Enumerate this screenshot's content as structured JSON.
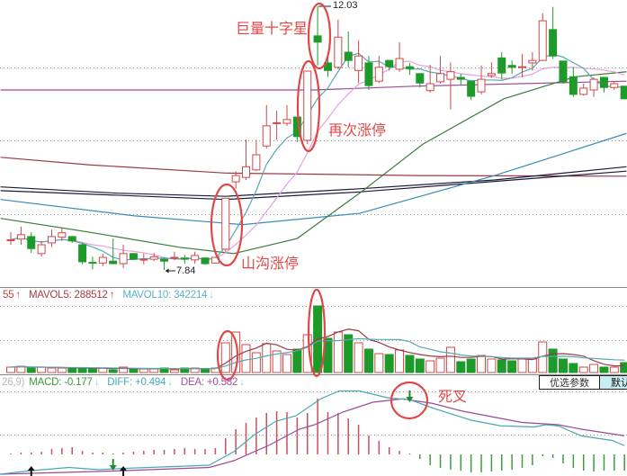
{
  "volume_header": {
    "vol_value": "55",
    "mavol5_label": "MAVOL5: 288512",
    "mavol10_label": "MAVOL10: 342214"
  },
  "macd_header": {
    "params": "26,9)",
    "macd_label": "MACD: -0.177",
    "diff_label": "DIFF: +0.494",
    "dea_label": "DEA: +0.582"
  },
  "buttons": {
    "optimize_params": "优选参数",
    "default": "默认"
  },
  "annotations": {
    "high_price": "12.03",
    "low_price": "7.84",
    "doji_label": "巨量十字星",
    "limit_up_again_label": "再次涨停",
    "valley_limit_up_label": "山沟涨停",
    "death_cross_label": "死叉"
  },
  "colors": {
    "up": "#d04848",
    "down": "#1e9a2a",
    "ma5": "#58a8b0",
    "ma10": "#e8a0e0",
    "green_ma": "#3c7a3c",
    "maroon_ma": "#9a3a48",
    "purple_ma": "#9a4a98",
    "navy_ma": "#1c1c3c",
    "teal_ma": "#3a8ab8",
    "annotation": "#e04848",
    "diff": "#4aa8b0",
    "dea": "#9a4a98"
  },
  "chart_data": [
    {
      "type": "candlestick",
      "price_high_label": 12.03,
      "price_low_label": 7.84,
      "ohlc": [
        [
          8.31,
          8.44,
          8.24,
          8.32
        ],
        [
          8.33,
          8.53,
          8.24,
          8.4
        ],
        [
          8.37,
          8.44,
          8.11,
          8.18
        ],
        [
          8.1,
          8.3,
          8.05,
          8.24
        ],
        [
          8.27,
          8.48,
          8.2,
          8.37
        ],
        [
          8.36,
          8.5,
          8.3,
          8.43
        ],
        [
          8.37,
          8.38,
          8.27,
          8.3
        ],
        [
          8.24,
          8.27,
          7.93,
          7.97
        ],
        [
          7.96,
          8.05,
          7.85,
          7.95
        ],
        [
          7.95,
          8.1,
          7.9,
          8.04
        ],
        [
          7.98,
          8.34,
          7.93,
          7.94
        ],
        [
          7.94,
          8.24,
          7.87,
          8.1
        ],
        [
          8.1,
          8.11,
          8.0,
          8.01
        ],
        [
          8.01,
          8.1,
          7.93,
          8.01
        ],
        [
          8.01,
          8.11,
          7.98,
          8.05
        ],
        [
          8.01,
          8.03,
          7.84,
          7.98
        ],
        [
          8.03,
          8.13,
          8.0,
          8.04
        ],
        [
          8.03,
          8.08,
          7.94,
          8.01
        ],
        [
          8.0,
          8.13,
          7.94,
          8.07
        ],
        [
          8.03,
          8.04,
          7.92,
          7.94
        ],
        [
          7.95,
          8.05,
          7.94,
          8.04
        ],
        [
          8.17,
          8.98,
          8.13,
          8.98
        ],
        [
          9.24,
          9.41,
          9.13,
          9.34
        ],
        [
          9.31,
          9.91,
          9.27,
          9.48
        ],
        [
          9.43,
          9.91,
          9.41,
          9.67
        ],
        [
          9.81,
          10.46,
          9.77,
          10.13
        ],
        [
          10.17,
          10.37,
          9.91,
          10.18
        ],
        [
          10.17,
          10.46,
          10.13,
          10.23
        ],
        [
          10.27,
          10.27,
          9.87,
          9.96
        ],
        [
          9.9,
          11.0,
          9.84,
          11.0
        ],
        [
          11.56,
          12.03,
          11.09,
          11.46
        ],
        [
          11.13,
          11.3,
          10.91,
          11.01
        ],
        [
          11.06,
          11.82,
          11.03,
          11.54
        ],
        [
          11.3,
          11.63,
          11.06,
          11.17
        ],
        [
          11.01,
          11.49,
          10.81,
          11.24
        ],
        [
          11.13,
          11.24,
          10.7,
          10.77
        ],
        [
          10.84,
          11.24,
          10.81,
          11.06
        ],
        [
          11.17,
          11.17,
          11.01,
          11.07
        ],
        [
          11.03,
          11.46,
          10.99,
          11.2
        ],
        [
          11.07,
          11.13,
          10.94,
          11.04
        ],
        [
          10.96,
          10.96,
          10.74,
          10.81
        ],
        [
          10.69,
          11.1,
          10.66,
          10.8
        ],
        [
          10.83,
          11.24,
          10.8,
          10.96
        ],
        [
          10.87,
          11.14,
          10.39,
          10.99
        ],
        [
          10.9,
          10.96,
          10.77,
          10.87
        ],
        [
          10.84,
          10.84,
          10.54,
          10.6
        ],
        [
          10.67,
          11.09,
          10.63,
          10.87
        ],
        [
          10.93,
          11.14,
          10.89,
          10.96
        ],
        [
          11.21,
          11.3,
          10.87,
          10.97
        ],
        [
          11.09,
          11.17,
          10.96,
          11.06
        ],
        [
          11.06,
          11.27,
          10.9,
          11.07
        ],
        [
          11.13,
          11.3,
          11.01,
          11.17
        ],
        [
          11.17,
          11.92,
          11.16,
          11.8
        ],
        [
          11.66,
          12.02,
          11.2,
          11.24
        ],
        [
          11.16,
          11.16,
          10.8,
          10.83
        ],
        [
          10.91,
          11.06,
          10.59,
          10.63
        ],
        [
          10.63,
          10.8,
          10.61,
          10.73
        ],
        [
          10.7,
          10.9,
          10.59,
          10.87
        ],
        [
          10.9,
          10.9,
          10.66,
          10.74
        ],
        [
          10.74,
          10.84,
          10.7,
          10.8
        ],
        [
          10.76,
          10.76,
          10.56,
          10.56
        ]
      ],
      "long_moving_averages": [
        {
          "key": "maroon_ma",
          "points": [
            [
              -1,
              9.63
            ],
            [
              7.7,
              9.51
            ],
            [
              21,
              9.38
            ],
            [
              40,
              9.34
            ],
            [
              60.2,
              9.33
            ]
          ]
        },
        {
          "key": "purple_ma",
          "points": [
            [
              -1,
              10.7
            ],
            [
              29.7,
              10.7
            ],
            [
              39.4,
              10.76
            ],
            [
              60.2,
              10.84
            ]
          ]
        },
        {
          "key": "navy_ma",
          "points": [
            [
              -1,
              9.16
            ],
            [
              10.4,
              9.06
            ],
            [
              21,
              9.01
            ],
            [
              34.1,
              9.13
            ],
            [
              47.3,
              9.27
            ],
            [
              60.2,
              9.48
            ]
          ]
        },
        {
          "key": "navy_ma",
          "points": [
            [
              -1,
              9.1
            ],
            [
              21,
              8.96
            ],
            [
              34.1,
              9.08
            ],
            [
              60.2,
              9.41
            ]
          ]
        },
        {
          "key": "teal_ma",
          "points": [
            [
              -1,
              8.96
            ],
            [
              12.1,
              8.7
            ],
            [
              22.7,
              8.56
            ],
            [
              34.1,
              8.74
            ],
            [
              47.3,
              9.34
            ],
            [
              60.2,
              10.01
            ]
          ]
        },
        {
          "key": "green_ma",
          "points": [
            [
              -1,
              8.66
            ],
            [
              7.7,
              8.44
            ],
            [
              16.5,
              8.2
            ],
            [
              21.8,
              8.1
            ],
            [
              28,
              8.34
            ],
            [
              34.1,
              9.06
            ],
            [
              40.3,
              9.84
            ],
            [
              48.2,
              10.56
            ],
            [
              55.2,
              10.91
            ],
            [
              60.2,
              10.99
            ]
          ]
        }
      ]
    },
    {
      "type": "bar",
      "name": "volume",
      "values": [
        228000,
        266000,
        190000,
        228000,
        190000,
        190000,
        190000,
        190000,
        152000,
        190000,
        114000,
        228000,
        152000,
        152000,
        152000,
        190000,
        114000,
        190000,
        190000,
        152000,
        190000,
        1254000,
        1710000,
        1178000,
        836000,
        1216000,
        912000,
        760000,
        988000,
        1596000,
        2812000,
        1444000,
        1710000,
        1596000,
        1254000,
        988000,
        798000,
        760000,
        950000,
        722000,
        570000,
        494000,
        608000,
        1064000,
        456000,
        570000,
        722000,
        570000,
        532000,
        494000,
        570000,
        570000,
        1292000,
        988000,
        570000,
        380000,
        228000,
        342000,
        228000,
        228000,
        418000
      ]
    },
    {
      "type": "line+bar",
      "name": "MACD",
      "histogram": [
        0.01,
        0.02,
        0.02,
        0.03,
        0.06,
        0.07,
        0.08,
        0.04,
        0.02,
        0.02,
        0.005,
        0.02,
        0.03,
        0.04,
        0.05,
        0.05,
        0.06,
        0.07,
        0.06,
        0.06,
        0.07,
        0.18,
        0.28,
        0.35,
        0.41,
        0.46,
        0.48,
        0.47,
        0.41,
        0.46,
        0.62,
        0.47,
        0.46,
        0.4,
        0.33,
        0.21,
        0.15,
        0.08,
        0.04,
        0.0,
        -0.05,
        -0.12,
        -0.15,
        -0.17,
        -0.18,
        -0.2,
        -0.2,
        -0.19,
        -0.18,
        -0.17,
        -0.15,
        -0.12,
        -0.02,
        -0.04,
        -0.1,
        -0.15,
        -0.18,
        -0.19,
        -0.18,
        -0.18,
        -0.18
      ],
      "diff": [
        [
          -1.1,
          0.24
        ],
        [
          1.8,
          0.27
        ],
        [
          5.7,
          0.3
        ],
        [
          8.6,
          0.28
        ],
        [
          10.6,
          0.29
        ],
        [
          19.4,
          0.32
        ],
        [
          21.8,
          0.44
        ],
        [
          23.8,
          0.59
        ],
        [
          25.9,
          0.71
        ],
        [
          27.9,
          0.76
        ],
        [
          29.5,
          0.86
        ],
        [
          30.3,
          0.91
        ],
        [
          32.1,
          0.98
        ],
        [
          34.1,
          0.98
        ],
        [
          36.8,
          0.92
        ],
        [
          39.1,
          0.9
        ],
        [
          41.2,
          0.83
        ],
        [
          45,
          0.72
        ],
        [
          47.9,
          0.67
        ],
        [
          51.2,
          0.66
        ],
        [
          52.3,
          0.68
        ],
        [
          53.5,
          0.67
        ],
        [
          55.8,
          0.58
        ],
        [
          58.8,
          0.54
        ],
        [
          60,
          0.494
        ]
      ],
      "dea": [
        [
          -1.1,
          0.24
        ],
        [
          10.6,
          0.27
        ],
        [
          19.4,
          0.3
        ],
        [
          21.8,
          0.36
        ],
        [
          25.3,
          0.5
        ],
        [
          28.2,
          0.64
        ],
        [
          29.7,
          0.68
        ],
        [
          32.4,
          0.79
        ],
        [
          35.4,
          0.88
        ],
        [
          38.3,
          0.91
        ],
        [
          41.2,
          0.87
        ],
        [
          44.2,
          0.8
        ],
        [
          47.1,
          0.75
        ],
        [
          50,
          0.7
        ],
        [
          53.5,
          0.68
        ],
        [
          55.8,
          0.64
        ],
        [
          60,
          0.582
        ]
      ],
      "signals": [
        {
          "type": "buy",
          "index": 2
        },
        {
          "type": "sell",
          "index": 10
        },
        {
          "type": "buy",
          "index": 11
        },
        {
          "type": "sell",
          "index": 39
        }
      ]
    }
  ]
}
